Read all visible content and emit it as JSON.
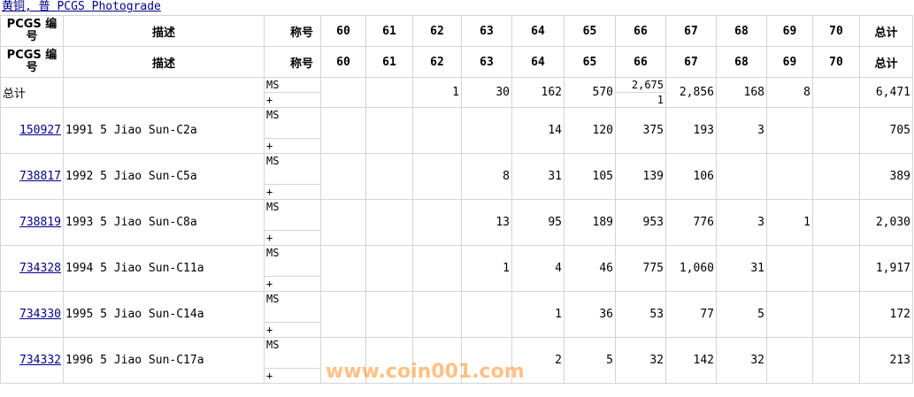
{
  "title_link": "黄铜, 普 PCGS Photograde",
  "headers": {
    "id": "PCGS 编号",
    "desc": "描述",
    "designation": "称号",
    "grades": [
      "60",
      "61",
      "62",
      "63",
      "64",
      "65",
      "66",
      "67",
      "68",
      "69",
      "70"
    ],
    "total": "总计"
  },
  "designations": {
    "ms": "MS",
    "plus": "+"
  },
  "summary": {
    "label": "总计",
    "ms": [
      "",
      "",
      "1",
      "30",
      "162",
      "570",
      "2,675",
      "2,856",
      "168",
      "8",
      ""
    ],
    "plus_66": "1",
    "total": "6,471"
  },
  "rows": [
    {
      "id": "150927",
      "desc": "1991 5 Jiao Sun-C2a",
      "values": [
        "",
        "",
        "",
        "",
        "14",
        "120",
        "375",
        "193",
        "3",
        "",
        ""
      ],
      "total": "705"
    },
    {
      "id": "738817",
      "desc": "1992 5 Jiao Sun-C5a",
      "values": [
        "",
        "",
        "",
        "8",
        "31",
        "105",
        "139",
        "106",
        "",
        "",
        ""
      ],
      "total": "389"
    },
    {
      "id": "738819",
      "desc": "1993 5 Jiao Sun-C8a",
      "values": [
        "",
        "",
        "",
        "13",
        "95",
        "189",
        "953",
        "776",
        "3",
        "1",
        ""
      ],
      "total": "2,030"
    },
    {
      "id": "734328",
      "desc": "1994 5 Jiao Sun-C11a",
      "values": [
        "",
        "",
        "",
        "1",
        "4",
        "46",
        "775",
        "1,060",
        "31",
        "",
        ""
      ],
      "total": "1,917"
    },
    {
      "id": "734330",
      "desc": "1995 5 Jiao Sun-C14a",
      "values": [
        "",
        "",
        "",
        "",
        "1",
        "36",
        "53",
        "77",
        "5",
        "",
        ""
      ],
      "total": "172"
    },
    {
      "id": "734332",
      "desc": "1996 5 Jiao Sun-C17a",
      "values": [
        "",
        "",
        "",
        "",
        "2",
        "5",
        "32",
        "142",
        "32",
        "",
        ""
      ],
      "total": "213"
    }
  ],
  "watermark": "www.coin001.com"
}
